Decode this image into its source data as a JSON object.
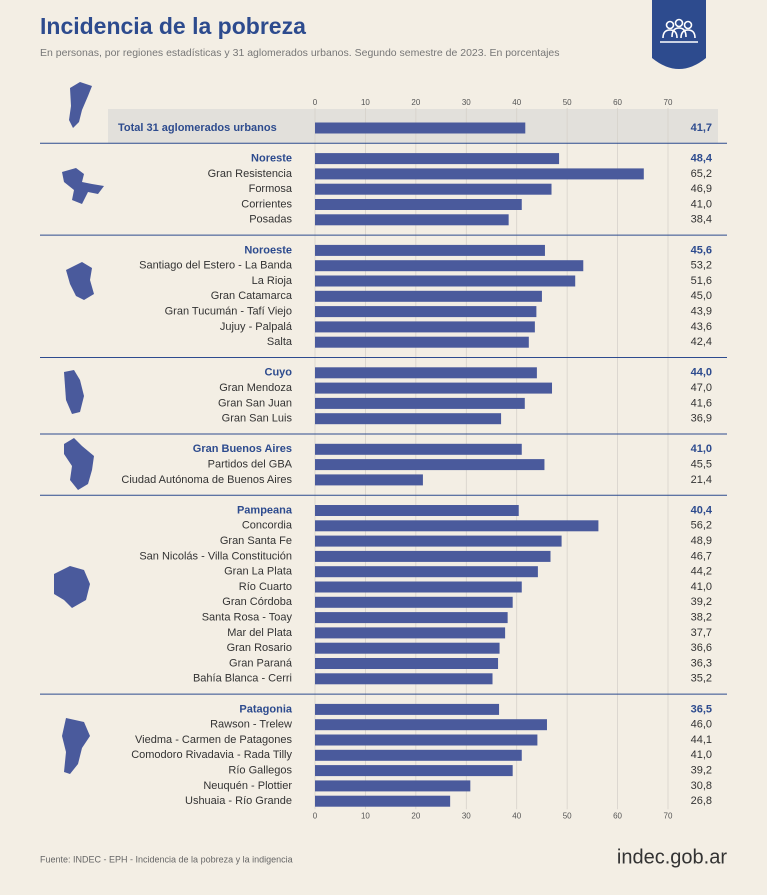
{
  "chart_data": {
    "type": "grouped-hbar",
    "title": "Incidencia de la pobreza",
    "subtitle": "En personas, por regiones estadísticas y 31 aglomerados urbanos. Segundo semestre de 2023. En porcentajes",
    "xlim": [
      0,
      70
    ],
    "xticks": [
      0,
      10,
      20,
      30,
      40,
      50,
      60,
      70
    ],
    "grid": true,
    "color": "#4a5a9c",
    "total": {
      "name": "Total 31 aglomerados urbanos",
      "value": 41.7,
      "value_label": "41,7"
    },
    "groups": [
      {
        "name": "Noreste",
        "value": 48.4,
        "value_label": "48,4",
        "categories": [
          "Gran Resistencia",
          "Formosa",
          "Corrientes",
          "Posadas"
        ],
        "values": [
          65.2,
          46.9,
          41.0,
          38.4
        ],
        "value_labels": [
          "65,2",
          "46,9",
          "41,0",
          "38,4"
        ]
      },
      {
        "name": "Noroeste",
        "value": 45.6,
        "value_label": "45,6",
        "categories": [
          "Santiago del Estero - La Banda",
          "La Rioja",
          "Gran Catamarca",
          "Gran Tucumán - Tafí Viejo",
          "Jujuy -  Palpalá",
          "Salta"
        ],
        "values": [
          53.2,
          51.6,
          45.0,
          43.9,
          43.6,
          42.4
        ],
        "value_labels": [
          "53,2",
          "51,6",
          "45,0",
          "43,9",
          "43,6",
          "42,4"
        ]
      },
      {
        "name": "Cuyo",
        "value": 44.0,
        "value_label": "44,0",
        "categories": [
          "Gran Mendoza",
          "Gran San Juan",
          "Gran San Luis"
        ],
        "values": [
          47.0,
          41.6,
          36.9
        ],
        "value_labels": [
          "47,0",
          "41,6",
          "36,9"
        ]
      },
      {
        "name": "Gran Buenos Aires",
        "value": 41.0,
        "value_label": "41,0",
        "categories": [
          "Partidos del GBA",
          "Ciudad Autónoma de Buenos Aires"
        ],
        "values": [
          45.5,
          21.4
        ],
        "value_labels": [
          "45,5",
          "21,4"
        ]
      },
      {
        "name": "Pampeana",
        "value": 40.4,
        "value_label": "40,4",
        "categories": [
          "Concordia",
          "Gran Santa Fe",
          "San Nicolás - Villa Constitución",
          "Gran La Plata",
          "Río Cuarto",
          "Gran Córdoba",
          "Santa Rosa - Toay",
          "Mar del Plata",
          "Gran Rosario",
          "Gran Paraná",
          "Bahía Blanca - Cerri"
        ],
        "values": [
          56.2,
          48.9,
          46.7,
          44.2,
          41.0,
          39.2,
          38.2,
          37.7,
          36.6,
          36.3,
          35.2
        ],
        "value_labels": [
          "56,2",
          "48,9",
          "46,7",
          "44,2",
          "41,0",
          "39,2",
          "38,2",
          "37,7",
          "36,6",
          "36,3",
          "35,2"
        ]
      },
      {
        "name": "Patagonia",
        "value": 36.5,
        "value_label": "36,5",
        "categories": [
          "Rawson - Trelew",
          "Viedma - Carmen de Patagones",
          "Comodoro Rivadavia - Rada Tilly",
          "Río Gallegos",
          "Neuquén - Plottier",
          "Ushuaia - Río Grande"
        ],
        "values": [
          46.0,
          44.1,
          41.0,
          39.2,
          30.8,
          26.8
        ],
        "value_labels": [
          "46,0",
          "44,1",
          "41,0",
          "39,2",
          "30,8",
          "26,8"
        ]
      }
    ],
    "source": "Fuente: INDEC - EPH - Incidencia de la pobreza y la indigencia",
    "logo": "indec.gob.ar"
  }
}
